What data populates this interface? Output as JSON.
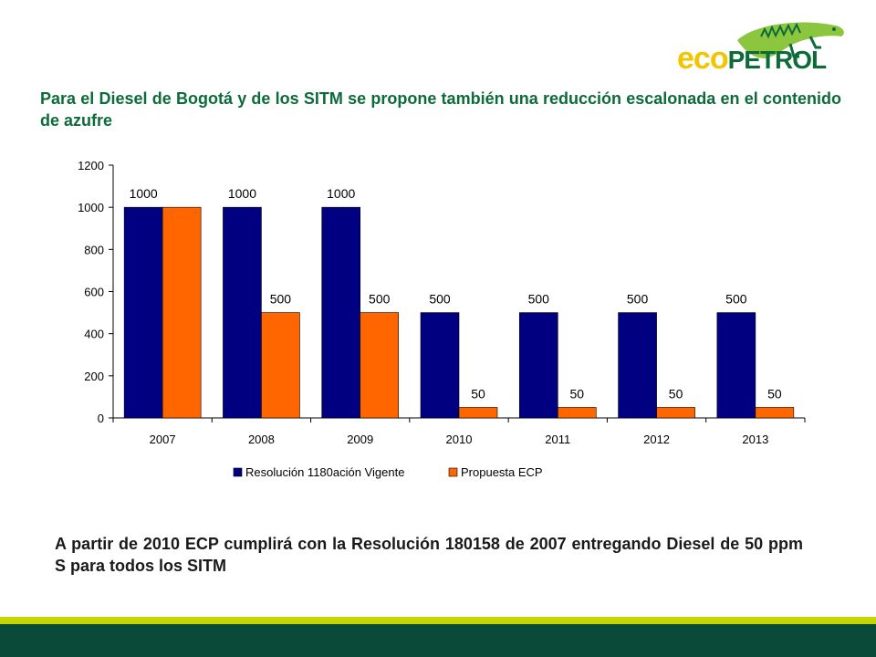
{
  "logo": {
    "text_left": "eco",
    "text_right": "PETROL",
    "brand_yellow": "#f2c500",
    "brand_green": "#0d6b3a"
  },
  "heading": "Para el Diesel de Bogotá y de los SITM se propone también una reducción escalonada en el contenido de azufre",
  "footnote": "A partir de 2010 ECP cumplirá con la Resolución 180158 de 2007 entregando Diesel de 50 ppm S para todos los SITM",
  "colors": {
    "band_light": "#c3d600",
    "band_dark": "#0a4a38"
  },
  "chart_data": {
    "type": "bar",
    "categories": [
      "2007",
      "2008",
      "2009",
      "2010",
      "2011",
      "2012",
      "2013"
    ],
    "series": [
      {
        "name": "Resolución 1180ación Vigente",
        "values": [
          1000,
          1000,
          1000,
          500,
          500,
          500,
          500
        ],
        "color": "#000080"
      },
      {
        "name": "Propuesta ECP",
        "values": [
          1000,
          500,
          500,
          50,
          50,
          50,
          50
        ],
        "color": "#ff6600"
      }
    ],
    "data_labels": [
      [
        "1000",
        "1000",
        "1000",
        "500",
        "500",
        "500",
        "500"
      ],
      [
        "",
        "500",
        "500",
        "50",
        "50",
        "50",
        "50"
      ]
    ],
    "ylim": [
      0,
      1200
    ],
    "yticks": [
      0,
      200,
      400,
      600,
      800,
      1000,
      1200
    ],
    "title": "",
    "xlabel": "",
    "ylabel": "",
    "grid": false,
    "legend_position": "bottom"
  }
}
